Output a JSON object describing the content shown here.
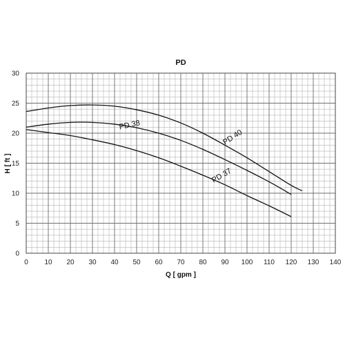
{
  "chart_data": {
    "type": "line",
    "title": "PD",
    "xlabel": "Q [ gpm ]",
    "ylabel": "H [ ft ]",
    "xlim": [
      0,
      140
    ],
    "ylim": [
      0,
      30
    ],
    "x_ticks": [
      "0",
      "10",
      "20",
      "30",
      "40",
      "50",
      "60",
      "70",
      "80",
      "90",
      "100",
      "110",
      "120",
      "130",
      "140"
    ],
    "y_ticks": [
      "0",
      "5",
      "10",
      "15",
      "20",
      "25",
      "30"
    ],
    "grid": true,
    "minor_grid_step_x": 2.5,
    "minor_grid_step_y": 1,
    "series": [
      {
        "name": "PD 40",
        "color": "#111111",
        "points": [
          [
            0,
            23.6
          ],
          [
            10,
            24.2
          ],
          [
            20,
            24.6
          ],
          [
            30,
            24.7
          ],
          [
            40,
            24.5
          ],
          [
            50,
            23.9
          ],
          [
            60,
            23.0
          ],
          [
            70,
            21.7
          ],
          [
            80,
            20.0
          ],
          [
            90,
            18.0
          ],
          [
            100,
            15.9
          ],
          [
            110,
            13.6
          ],
          [
            120,
            11.3
          ],
          [
            125,
            10.4
          ]
        ],
        "label_at": [
          94,
          19.0
        ],
        "label_angle": -33
      },
      {
        "name": "PD 38",
        "color": "#111111",
        "points": [
          [
            0,
            21.0
          ],
          [
            10,
            21.5
          ],
          [
            20,
            21.8
          ],
          [
            30,
            21.8
          ],
          [
            40,
            21.5
          ],
          [
            50,
            20.9
          ],
          [
            60,
            20.0
          ],
          [
            70,
            18.8
          ],
          [
            80,
            17.3
          ],
          [
            90,
            15.6
          ],
          [
            100,
            13.8
          ],
          [
            110,
            11.9
          ],
          [
            120,
            9.8
          ]
        ],
        "label_at": [
          47,
          21.0
        ],
        "label_angle": -12
      },
      {
        "name": "PD 37",
        "color": "#111111",
        "points": [
          [
            0,
            20.6
          ],
          [
            10,
            20.1
          ],
          [
            20,
            19.6
          ],
          [
            30,
            18.9
          ],
          [
            40,
            18.1
          ],
          [
            50,
            17.1
          ],
          [
            60,
            15.9
          ],
          [
            70,
            14.5
          ],
          [
            80,
            13.0
          ],
          [
            90,
            11.4
          ],
          [
            100,
            9.6
          ],
          [
            110,
            7.9
          ],
          [
            120,
            6.1
          ]
        ],
        "label_at": [
          89,
          12.6
        ],
        "label_angle": -30
      }
    ]
  }
}
